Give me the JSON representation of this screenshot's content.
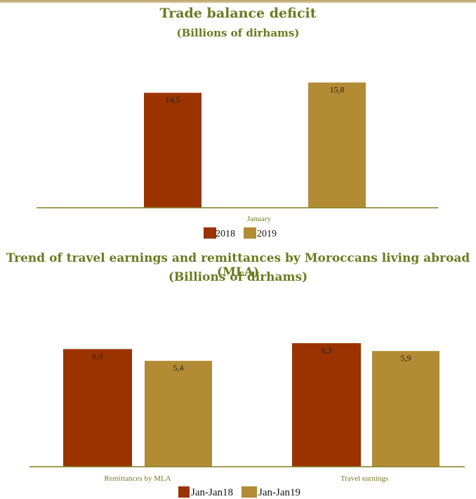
{
  "colors": {
    "series_a": "#9b3300",
    "series_b": "#b38b35",
    "title": "#6b7a1f",
    "axis": "#7f7f1f",
    "tick_label": "#7a7a2a"
  },
  "chart_data": [
    {
      "type": "bar",
      "title": "Trade balance deficit",
      "subtitle": "(Billions of dirhams)",
      "categories": [
        "January"
      ],
      "series": [
        {
          "name": "2018",
          "values": [
            14.5
          ],
          "labels": [
            "14,5"
          ]
        },
        {
          "name": "2019",
          "values": [
            15.8
          ],
          "labels": [
            "15,8"
          ]
        }
      ],
      "ylim": [
        0,
        17
      ],
      "grid": false,
      "legend": "bottom-center"
    },
    {
      "type": "bar",
      "title": "Trend of travel earnings and remittances by Moroccans living abroad (MLA)",
      "subtitle": "(Billions of dirhams)",
      "categories": [
        "Remittances by MLA",
        "Travel earnings"
      ],
      "series": [
        {
          "name": "Jan-Jan18",
          "values": [
            6.0,
            6.3
          ],
          "labels": [
            "6,0",
            "6,3"
          ]
        },
        {
          "name": "Jan-Jan19",
          "values": [
            5.4,
            5.9
          ],
          "labels": [
            "5,4",
            "5,9"
          ]
        }
      ],
      "ylim": [
        0,
        6.3
      ],
      "grid": false,
      "legend": "bottom-center"
    }
  ]
}
